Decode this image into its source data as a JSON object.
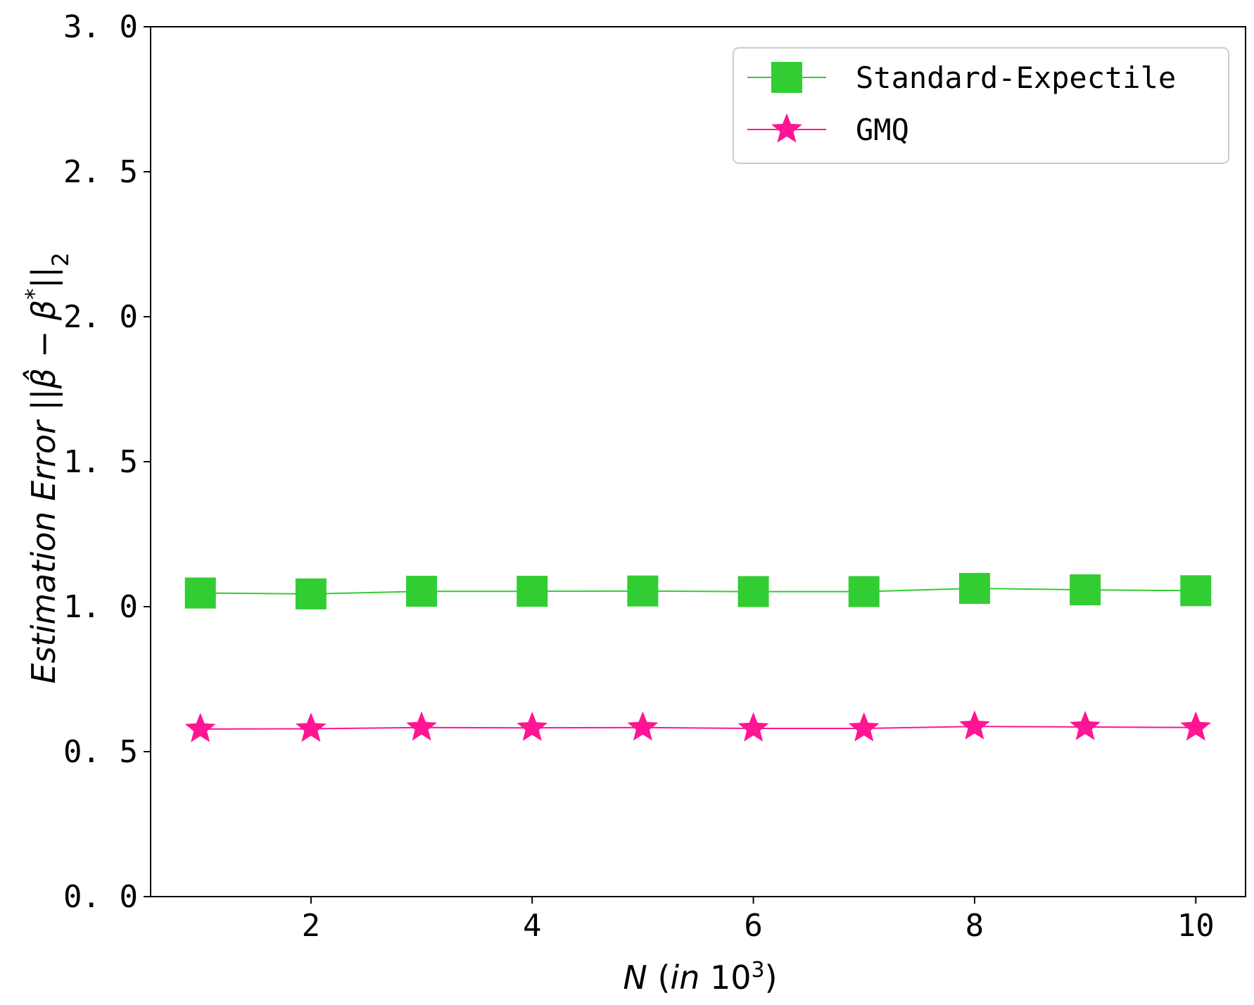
{
  "chart_data": {
    "type": "line",
    "x": [
      1,
      2,
      3,
      4,
      5,
      6,
      7,
      8,
      9,
      10
    ],
    "series": [
      {
        "name": "Standard-Expectile",
        "values": [
          1.047,
          1.044,
          1.053,
          1.053,
          1.054,
          1.052,
          1.052,
          1.063,
          1.058,
          1.055
        ],
        "color": "#32cd32",
        "marker": "square"
      },
      {
        "name": "GMQ",
        "values": [
          0.578,
          0.579,
          0.583,
          0.582,
          0.583,
          0.58,
          0.58,
          0.587,
          0.585,
          0.583
        ],
        "color": "#ff1493",
        "marker": "star"
      }
    ],
    "xlabel": "N (in 10³)",
    "ylabel": "Estimation Error ||β̂ − β*||₂",
    "xlim": [
      0.55,
      10.45
    ],
    "ylim": [
      0.0,
      3.0
    ],
    "xticks": [
      "2",
      "4",
      "6",
      "8",
      "10"
    ],
    "xtick_values": [
      2,
      4,
      6,
      8,
      10
    ],
    "yticks": [
      "0. 0",
      "0. 5",
      "1. 0",
      "1. 5",
      "2. 0",
      "2. 5",
      "3. 0"
    ],
    "ytick_values": [
      0.0,
      0.5,
      1.0,
      1.5,
      2.0,
      2.5,
      3.0
    ],
    "grid": false,
    "legend_position": "top-right"
  }
}
